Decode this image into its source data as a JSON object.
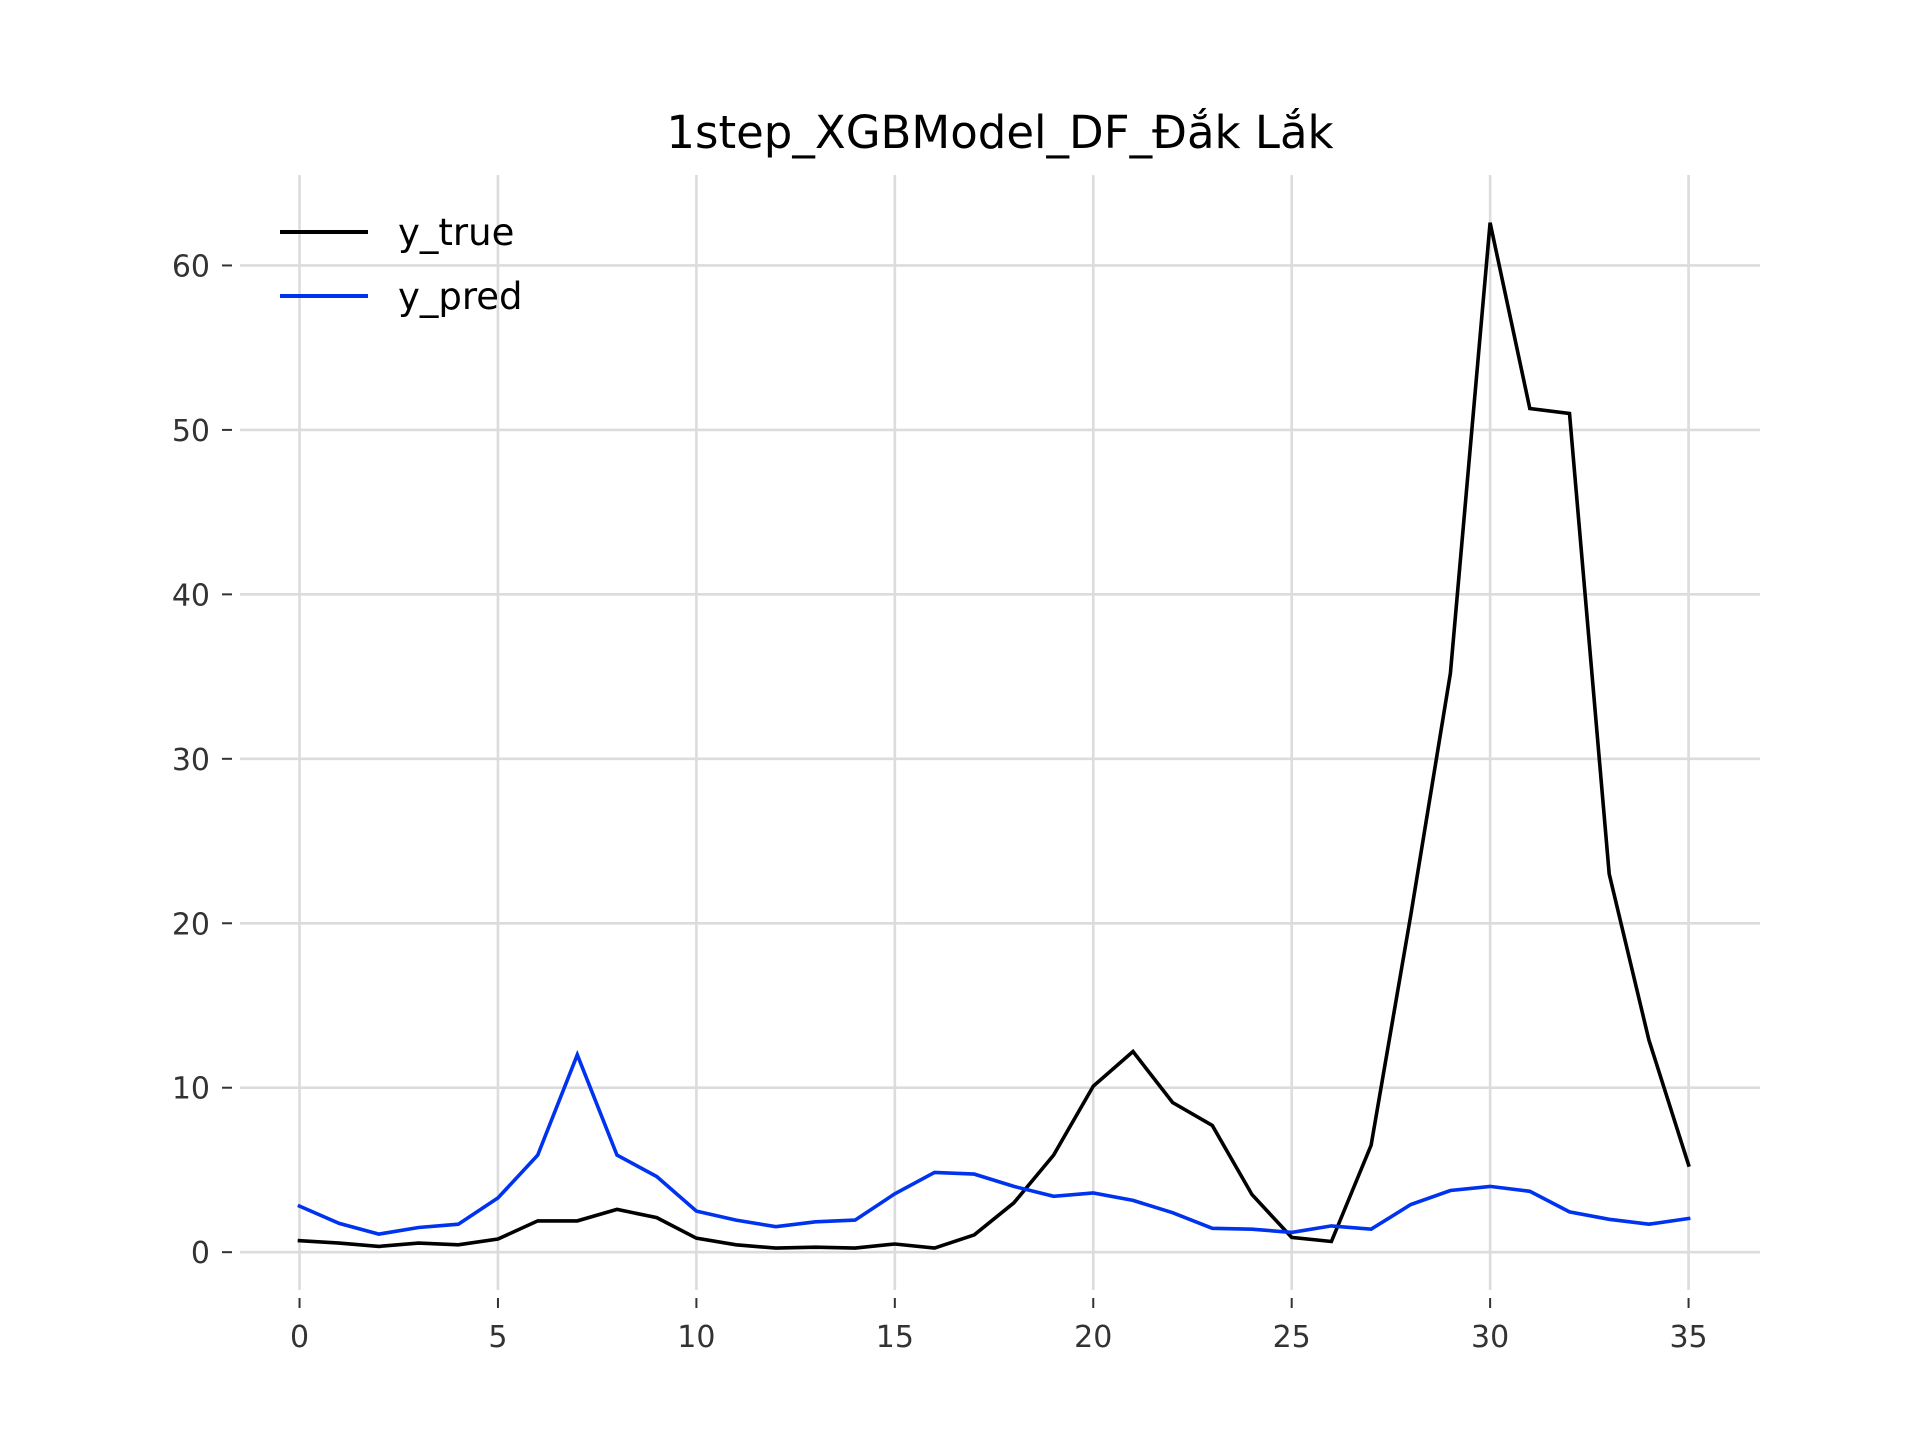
{
  "chart_data": {
    "type": "line",
    "title": "1step_XGBModel_DF_Đắk Lắk",
    "xlabel": "",
    "ylabel": "",
    "x": [
      0,
      1,
      2,
      3,
      4,
      5,
      6,
      7,
      8,
      9,
      10,
      11,
      12,
      13,
      14,
      15,
      16,
      17,
      18,
      19,
      20,
      21,
      22,
      23,
      24,
      25,
      26,
      27,
      28,
      29,
      30,
      31,
      32,
      33,
      34,
      35
    ],
    "xlim": [
      -1.5,
      36.8
    ],
    "ylim": [
      -2.3,
      65.5
    ],
    "xticks": [
      0,
      5,
      10,
      15,
      20,
      25,
      30,
      35
    ],
    "yticks": [
      0,
      10,
      20,
      30,
      40,
      50,
      60
    ],
    "grid": true,
    "legend_position": "top-left",
    "series": [
      {
        "name": "y_true",
        "color": "#000000",
        "values": [
          0.7,
          0.55,
          0.35,
          0.55,
          0.45,
          0.8,
          1.9,
          1.9,
          2.6,
          2.1,
          0.85,
          0.45,
          0.25,
          0.3,
          0.25,
          0.5,
          0.25,
          1.05,
          3.0,
          5.9,
          10.1,
          12.2,
          9.1,
          7.7,
          3.5,
          0.9,
          0.65,
          6.5,
          20.5,
          35.2,
          62.6,
          51.3,
          51.0,
          23.0,
          12.9,
          5.3
        ]
      },
      {
        "name": "y_pred",
        "color": "#0033ee",
        "values": [
          2.8,
          1.75,
          1.1,
          1.5,
          1.7,
          3.3,
          5.9,
          12.0,
          5.9,
          4.6,
          2.5,
          1.95,
          1.55,
          1.85,
          1.95,
          3.55,
          4.85,
          4.75,
          4.0,
          3.4,
          3.6,
          3.15,
          2.4,
          1.45,
          1.4,
          1.2,
          1.6,
          1.4,
          2.9,
          3.75,
          4.0,
          3.7,
          2.45,
          2.0,
          1.7,
          2.05
        ]
      }
    ]
  }
}
